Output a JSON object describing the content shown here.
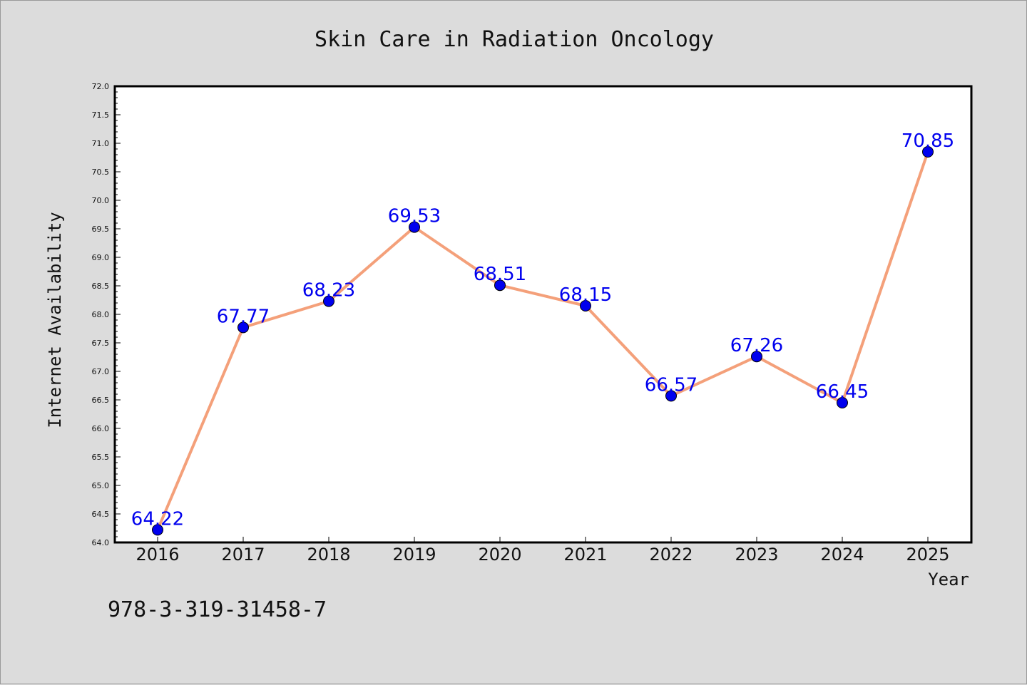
{
  "chart_data": {
    "type": "line",
    "title": "Skin Care in Radiation Oncology",
    "xlabel": "Year",
    "ylabel": "Internet Availability",
    "categories": [
      "2016",
      "2017",
      "2018",
      "2019",
      "2020",
      "2021",
      "2022",
      "2023",
      "2024",
      "2025"
    ],
    "values": [
      64.22,
      67.77,
      68.23,
      69.53,
      68.51,
      68.15,
      66.57,
      67.26,
      66.45,
      70.85
    ],
    "data_labels": [
      "64.22",
      "67.77",
      "68.23",
      "69.53",
      "68.51",
      "68.15",
      "66.57",
      "67.26",
      "66.45",
      "70.85"
    ],
    "ylim": [
      64.0,
      72.0
    ],
    "yticks": [
      "64.0",
      "64.5",
      "65.0",
      "65.5",
      "66.0",
      "66.5",
      "67.0",
      "67.5",
      "68.0",
      "68.5",
      "69.0",
      "69.5",
      "70.0",
      "70.5",
      "71.0",
      "71.5",
      "72.0"
    ],
    "grid": false,
    "legend": "none",
    "colors": {
      "line": "#f4a07a",
      "marker": "#0000ee",
      "label": "#0000ee",
      "background": "#dcdcdc",
      "plot_background": "#ffffff"
    }
  },
  "footer": {
    "text": "978-3-319-31458-7"
  }
}
